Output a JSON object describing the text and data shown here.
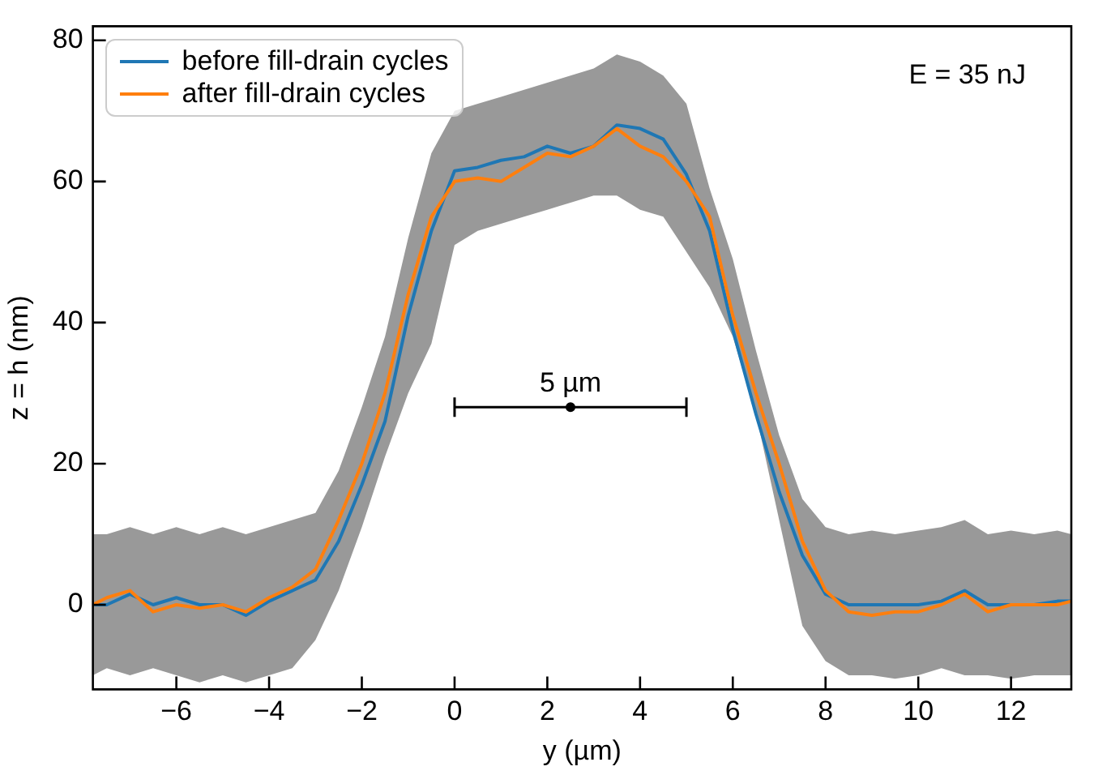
{
  "chart_data": {
    "type": "line",
    "xlabel": "y (µm)",
    "ylabel": "z = h (nm)",
    "x": [
      -7.8,
      -7.5,
      -7,
      -6.5,
      -6,
      -5.5,
      -5,
      -4.5,
      -4,
      -3.5,
      -3,
      -2.5,
      -2,
      -1.5,
      -1,
      -0.5,
      0,
      0.5,
      1,
      1.5,
      2,
      2.5,
      3,
      3.5,
      4,
      4.5,
      5,
      5.5,
      6,
      6.5,
      7,
      7.5,
      8,
      8.5,
      9,
      9.5,
      10,
      10.5,
      11,
      11.5,
      12,
      12.5,
      13,
      13.3
    ],
    "series": [
      {
        "name": "before fill-drain cycles",
        "color": "#1f77b4",
        "values": [
          0,
          0,
          1.5,
          0,
          1,
          0,
          0,
          -1.5,
          0.5,
          2,
          3.5,
          9,
          17,
          26,
          41,
          53,
          61.5,
          62,
          63,
          63.5,
          65,
          64,
          65,
          68,
          67.5,
          66,
          61,
          53,
          39,
          27,
          16,
          7,
          1.5,
          0,
          0,
          0,
          0,
          0.5,
          2,
          0,
          0,
          0,
          0.5,
          0.5
        ],
        "lower": [
          -10,
          -9,
          -10,
          -9,
          -10,
          -11,
          -10,
          -11,
          -10,
          -9,
          -5,
          2,
          11,
          21,
          30,
          37,
          51,
          53,
          54,
          55,
          56,
          57,
          58,
          58,
          56,
          55,
          50,
          45,
          38,
          27,
          12,
          -3,
          -8,
          -10,
          -10,
          -10.5,
          -10,
          -9,
          -10,
          -10,
          -10.5,
          -10,
          -10,
          -10
        ],
        "upper": [
          10,
          10,
          11,
          10,
          11,
          10,
          11,
          10,
          11,
          12,
          13,
          19,
          28,
          38,
          52,
          64,
          70,
          71,
          72,
          73,
          74,
          75,
          76,
          78,
          77,
          75,
          71,
          59,
          49,
          36,
          24,
          15,
          11,
          10,
          10.5,
          10,
          10.5,
          11,
          12,
          10,
          10.5,
          10,
          10.5,
          10
        ]
      },
      {
        "name": "after fill-drain cycles",
        "color": "#ff7f0e",
        "values": [
          0,
          1,
          2,
          -1,
          0,
          -0.5,
          0,
          -1,
          1,
          2.5,
          5,
          12,
          20,
          30,
          44,
          55,
          60,
          60.5,
          60,
          62,
          64,
          63.5,
          65,
          67.5,
          65,
          63.5,
          60,
          55,
          41,
          30,
          20,
          9,
          2,
          -1,
          -1.5,
          -1,
          -1,
          0,
          1.5,
          -1,
          0,
          0,
          0,
          0.5
        ]
      },
      {
        "type": "scatter",
        "color": "#000000",
        "x": [
          2.5
        ],
        "values": [
          28
        ],
        "xerrors": [
          2.5
        ],
        "marker": "circle"
      }
    ],
    "annotations": [
      "E = 35 nJ",
      {
        "text": "5 µm",
        "x": 2.5,
        "y": 28
      }
    ],
    "xlim": [
      -7.8,
      13.3
    ],
    "xticks": [
      -6,
      -4,
      -2,
      0,
      2,
      4,
      6,
      8,
      10,
      12
    ],
    "ylim": [
      -12,
      82
    ],
    "yticks": [
      0,
      20,
      40,
      60,
      80
    ],
    "legend": "top left",
    "marker": "none",
    "line_style": "solid"
  }
}
